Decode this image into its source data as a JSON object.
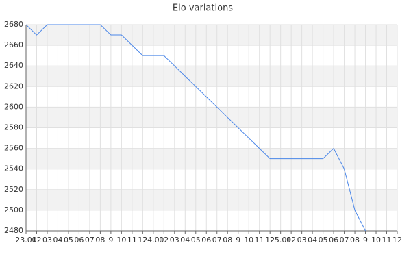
{
  "chart_data": {
    "type": "line",
    "title": "Elo variations",
    "categories": [
      "23.01",
      "02",
      "03",
      "04",
      "05",
      "06",
      "07",
      "08",
      "9",
      "10",
      "11",
      "12",
      "24.01",
      "02",
      "03",
      "04",
      "05",
      "06",
      "07",
      "08",
      "9",
      "10",
      "11",
      "12",
      "25.01",
      "02",
      "03",
      "04",
      "05",
      "06",
      "07",
      "08",
      "9",
      "10",
      "11",
      "12"
    ],
    "series": [
      {
        "name": "Elo",
        "color": "#4a86e8",
        "values": [
          2680,
          2670,
          2680,
          2680,
          2680,
          2680,
          2680,
          2680,
          2670,
          2670,
          2660,
          2650,
          2650,
          2650,
          2640,
          2630,
          2620,
          2610,
          2600,
          2590,
          2580,
          2570,
          2560,
          2550,
          2550,
          2550,
          2550,
          2550,
          2550,
          2560,
          2540,
          2500,
          2480,
          null,
          null,
          null
        ]
      }
    ],
    "ylim": [
      2480,
      2680
    ],
    "yticks": [
      2480,
      2500,
      2520,
      2540,
      2560,
      2580,
      2600,
      2620,
      2640,
      2660,
      2680
    ],
    "grid": true
  }
}
